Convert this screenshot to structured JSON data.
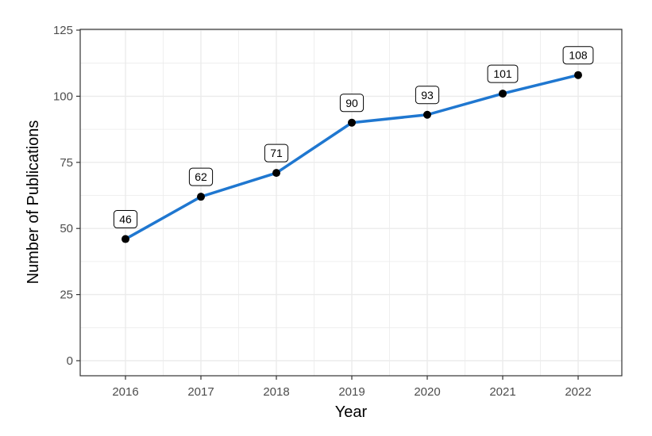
{
  "chart_data": {
    "type": "line",
    "title": "",
    "xlabel": "Year",
    "ylabel": "Number of Publications",
    "x": [
      "2016",
      "2017",
      "2018",
      "2019",
      "2020",
      "2021",
      "2022"
    ],
    "values": [
      46,
      62,
      71,
      90,
      93,
      101,
      108
    ],
    "ylim": [
      0,
      125
    ],
    "yticks": [
      0,
      25,
      50,
      75,
      100,
      125
    ],
    "grid": true,
    "legend": "none",
    "colors": {
      "line": "#1f77d0",
      "points": "#000000",
      "grid": "#ebebeb",
      "border": "#333333"
    }
  }
}
